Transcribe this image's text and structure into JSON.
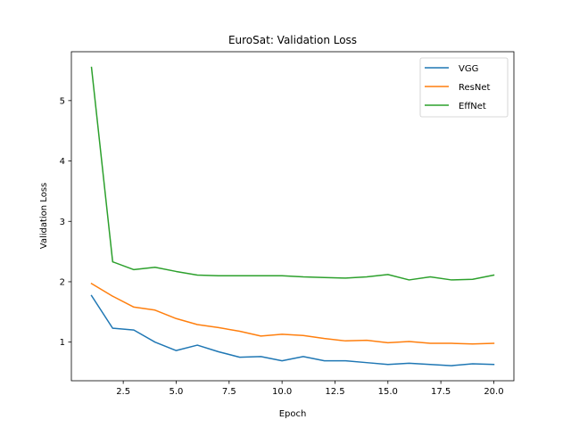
{
  "chart_data": {
    "type": "line",
    "title": "EuroSat: Validation Loss",
    "xlabel": "Epoch",
    "ylabel": "Validation Loss",
    "xlim": [
      0.05,
      20.95
    ],
    "ylim": [
      0.36,
      5.81
    ],
    "xticks": [
      2.5,
      5.0,
      7.5,
      10.0,
      12.5,
      15.0,
      17.5,
      20.0
    ],
    "yticks": [
      1,
      2,
      3,
      4,
      5
    ],
    "grid": false,
    "legend_position": "top-right",
    "x": [
      1,
      2,
      3,
      4,
      5,
      6,
      7,
      8,
      9,
      10,
      11,
      12,
      13,
      14,
      15,
      16,
      17,
      18,
      19,
      20
    ],
    "series": [
      {
        "name": "VGG",
        "color": "#1f77b4",
        "values": [
          1.77,
          1.23,
          1.2,
          1.0,
          0.86,
          0.95,
          0.84,
          0.75,
          0.76,
          0.69,
          0.76,
          0.69,
          0.69,
          0.66,
          0.63,
          0.65,
          0.63,
          0.61,
          0.64,
          0.63
        ]
      },
      {
        "name": "ResNet",
        "color": "#ff7f0e",
        "values": [
          1.97,
          1.76,
          1.58,
          1.53,
          1.39,
          1.29,
          1.24,
          1.18,
          1.1,
          1.13,
          1.11,
          1.06,
          1.02,
          1.03,
          0.99,
          1.01,
          0.98,
          0.98,
          0.97,
          0.98
        ]
      },
      {
        "name": "EffNet",
        "color": "#2ca02c",
        "values": [
          5.55,
          2.33,
          2.2,
          2.24,
          2.17,
          2.11,
          2.1,
          2.1,
          2.1,
          2.1,
          2.08,
          2.07,
          2.06,
          2.08,
          2.12,
          2.03,
          2.08,
          2.03,
          2.04,
          2.11
        ]
      }
    ]
  }
}
